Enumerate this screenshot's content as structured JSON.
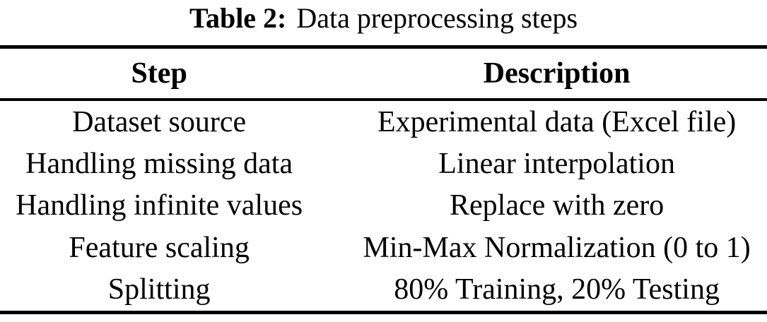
{
  "colors": {
    "text": "#000000",
    "background": "#ffffff",
    "rule": "#000000"
  },
  "table": {
    "caption": {
      "label": "Table 2:",
      "text": "Data preprocessing steps"
    },
    "columns": {
      "step": "Step",
      "description": "Description"
    },
    "rows": [
      {
        "step": "Dataset source",
        "description": "Experimental data (Excel file)"
      },
      {
        "step": "Handling missing data",
        "description": "Linear interpolation"
      },
      {
        "step": "Handling infinite values",
        "description": "Replace with zero"
      },
      {
        "step": "Feature scaling",
        "description": "Min-Max Normalization (0 to 1)"
      },
      {
        "step": "Splitting",
        "description": "80% Training, 20% Testing"
      }
    ]
  }
}
